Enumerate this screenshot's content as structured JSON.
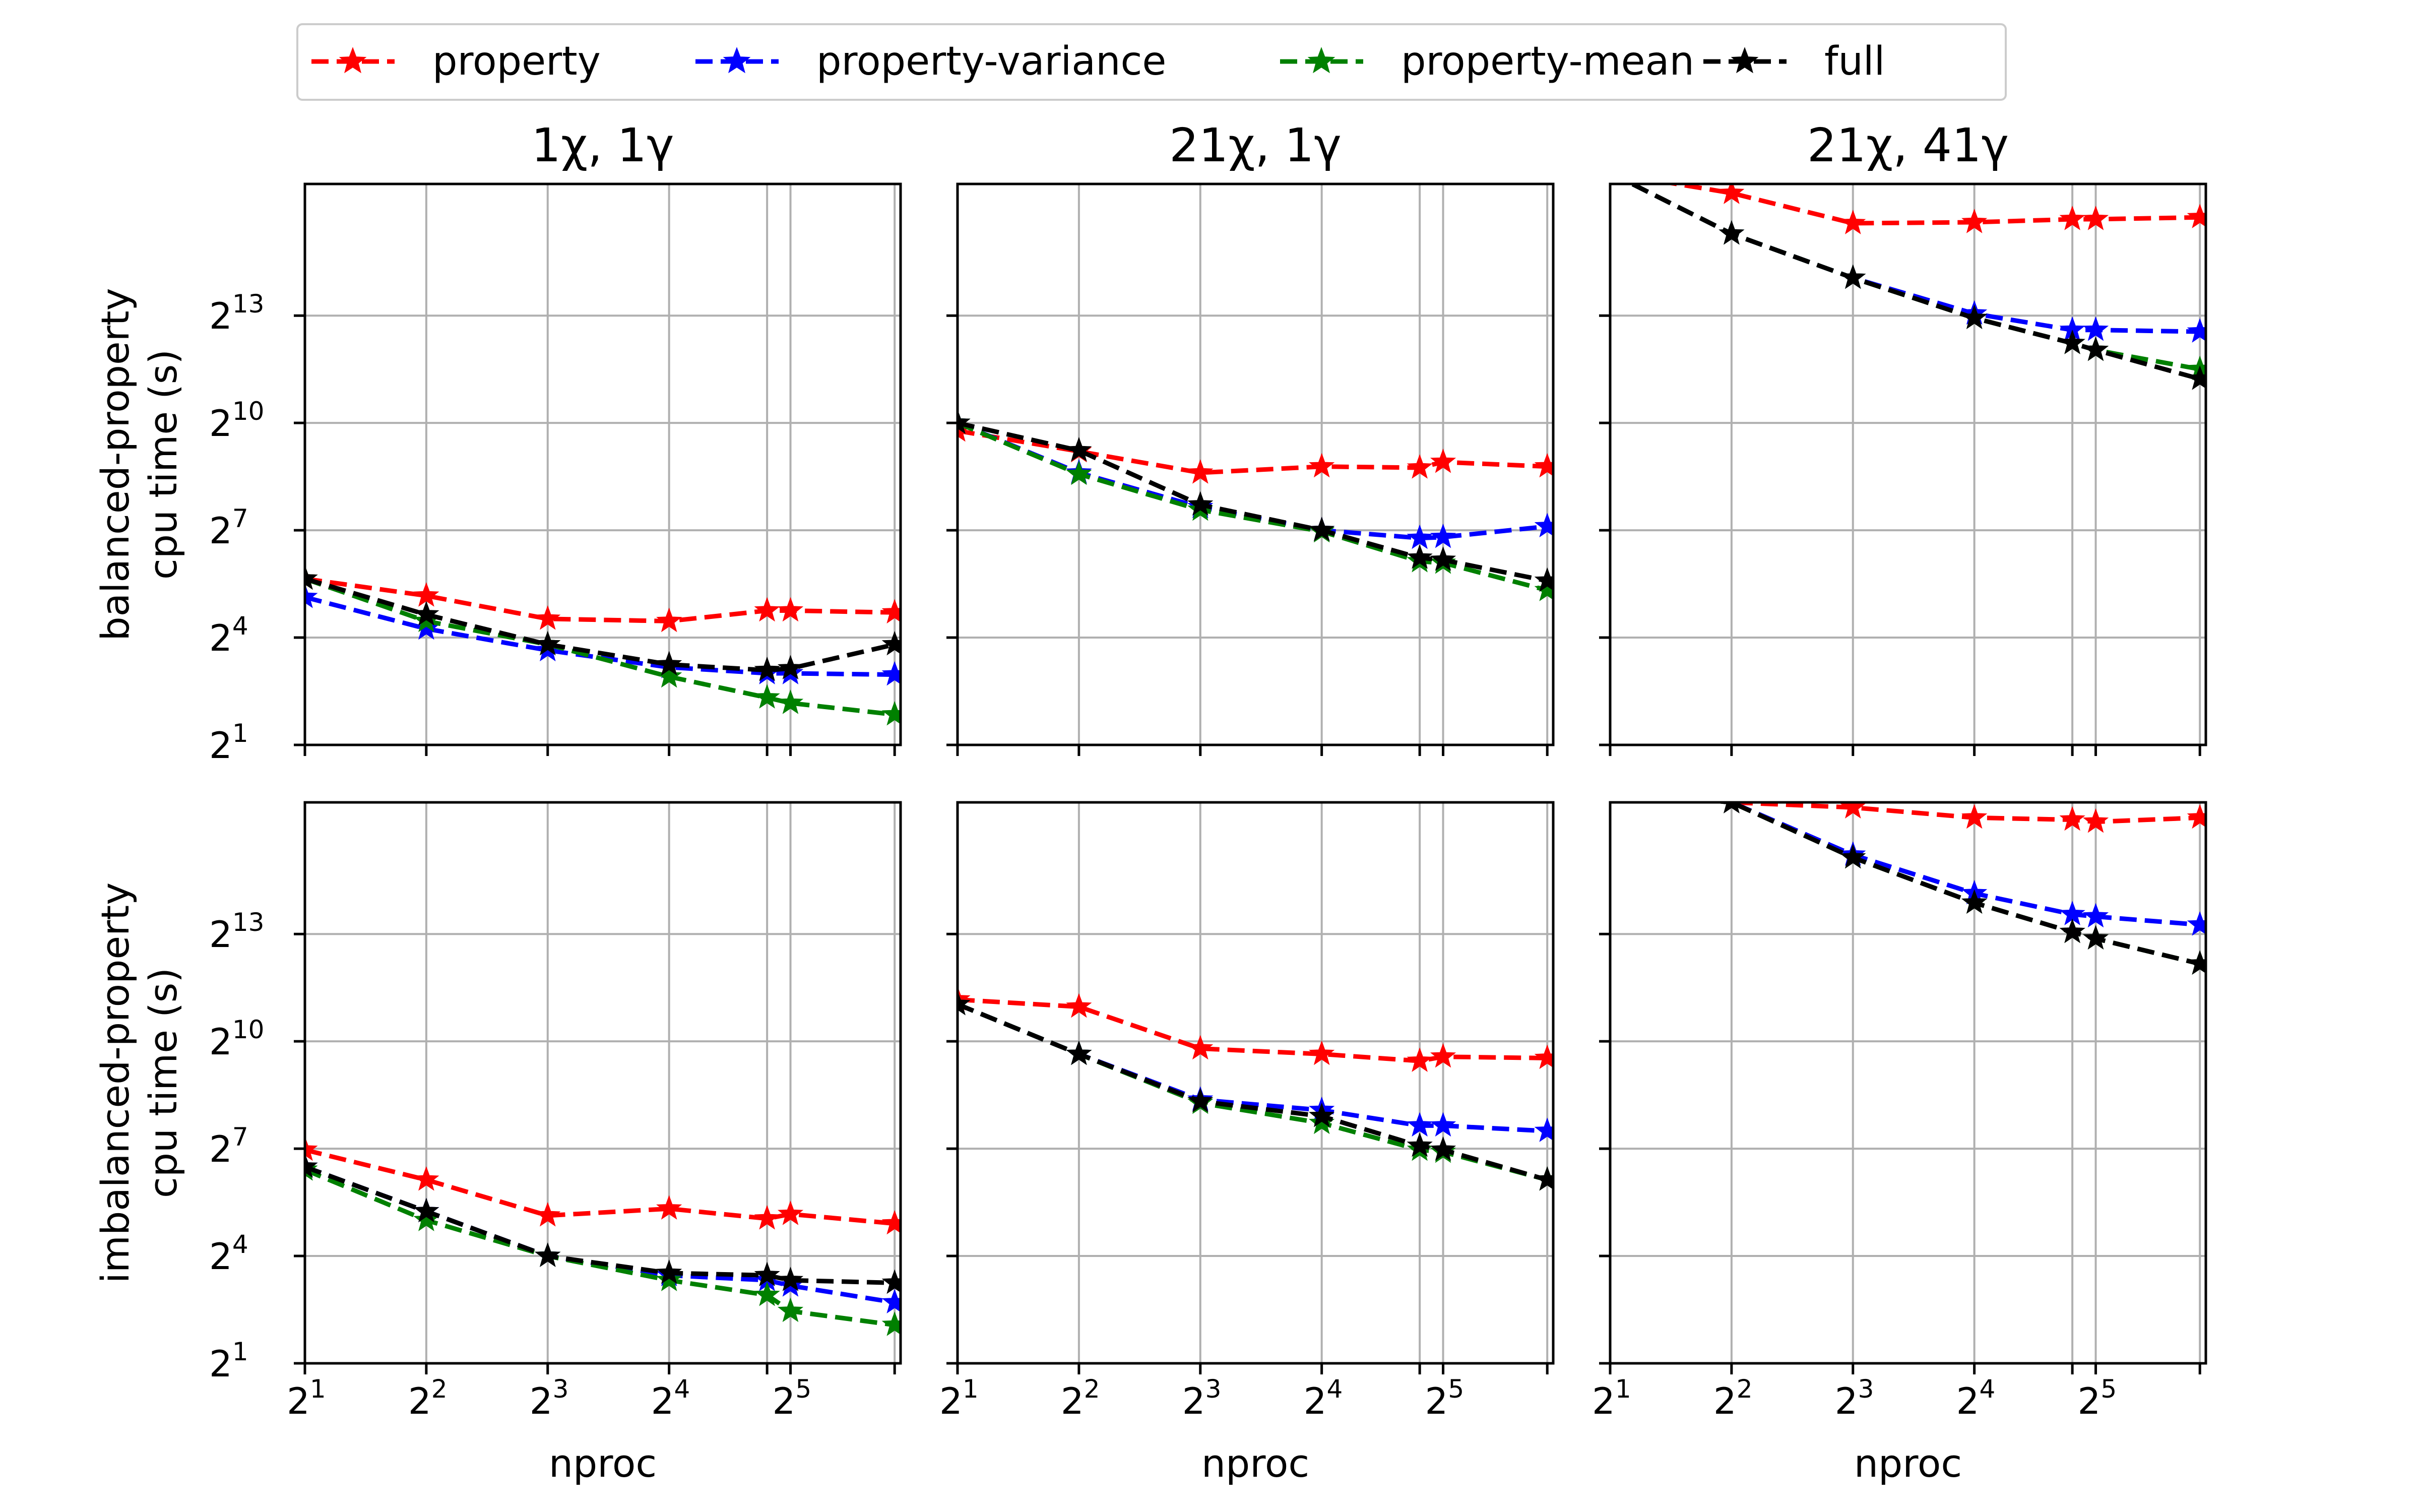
{
  "legend": {
    "entries": [
      {
        "label": "property",
        "color": "#ff0000"
      },
      {
        "label": "property-variance",
        "color": "#0000ff"
      },
      {
        "label": "property-mean",
        "color": "#008000"
      },
      {
        "label": "full",
        "color": "#000000"
      }
    ]
  },
  "chart_data": [
    {
      "type": "line",
      "title": "1χ, 1γ",
      "ylabel": [
        "balanced-property",
        "cpu time (s)"
      ],
      "xlabel": "",
      "xscale": "log2",
      "yscale": "log2",
      "xlim": [
        2,
        60
      ],
      "ylim": [
        2,
        105000
      ],
      "grid": true,
      "x": [
        2,
        4,
        8,
        16,
        28,
        32,
        58
      ],
      "series": [
        {
          "name": "property",
          "values": [
            50,
            36,
            23,
            22,
            27,
            27,
            26
          ]
        },
        {
          "name": "property-variance",
          "values": [
            35,
            19,
            12.5,
            9,
            8,
            8,
            7.8
          ]
        },
        {
          "name": "property-mean",
          "values": [
            50,
            22,
            14,
            7.5,
            5,
            4.5,
            3.6
          ]
        },
        {
          "name": "full",
          "values": [
            50,
            25,
            14,
            9.5,
            8.5,
            8.8,
            14
          ]
        }
      ]
    },
    {
      "type": "line",
      "title": "21χ, 1γ",
      "ylabel": "",
      "xlabel": "",
      "xscale": "log2",
      "yscale": "log2",
      "xlim": [
        2,
        60
      ],
      "ylim": [
        2,
        105000
      ],
      "grid": true,
      "x": [
        2,
        4,
        8,
        16,
        28,
        32,
        58
      ],
      "series": [
        {
          "name": "property",
          "values": [
            880,
            590,
            390,
            440,
            430,
            480,
            440
          ]
        },
        {
          "name": "property-variance",
          "values": [
            1024,
            390,
            200,
            128,
            110,
            112,
            138
          ]
        },
        {
          "name": "property-mean",
          "values": [
            1024,
            380,
            190,
            125,
            70,
            68,
            40
          ]
        },
        {
          "name": "full",
          "values": [
            1024,
            600,
            210,
            128,
            75,
            72,
            48
          ]
        }
      ]
    },
    {
      "type": "line",
      "title": "21χ, 41γ",
      "ylabel": "",
      "xlabel": "",
      "xscale": "log2",
      "yscale": "log2",
      "xlim": [
        2,
        60
      ],
      "ylim": [
        2,
        105000
      ],
      "grid": true,
      "x": [
        2,
        4,
        8,
        16,
        28,
        32,
        58
      ],
      "series": [
        {
          "name": "property",
          "values": [
            130000,
            88000,
            49000,
            50000,
            53000,
            53000,
            55000
          ]
        },
        {
          "name": "property-variance",
          "values": [
            130000,
            40000,
            17000,
            8500,
            6200,
            6200,
            6000
          ]
        },
        {
          "name": "property-mean",
          "values": [
            130000,
            40000,
            17000,
            7800,
            4800,
            4200,
            2900
          ]
        },
        {
          "name": "full",
          "values": [
            130000,
            40000,
            17000,
            7800,
            4800,
            4200,
            2400
          ]
        }
      ]
    },
    {
      "type": "line",
      "title": "",
      "ylabel": [
        "imbalanced-property",
        "cpu time (s)"
      ],
      "xlabel": "nproc",
      "xscale": "log2",
      "yscale": "log2",
      "xlim": [
        2,
        60
      ],
      "ylim": [
        2,
        105000
      ],
      "grid": true,
      "x": [
        2,
        4,
        8,
        16,
        28,
        32,
        58
      ],
      "series": [
        {
          "name": "property",
          "values": [
            125,
            70,
            35,
            40,
            33,
            36,
            30
          ]
        },
        {
          "name": "property-variance",
          "values": [
            90,
            38,
            16,
            11,
            10,
            9,
            6.5
          ]
        },
        {
          "name": "property-mean",
          "values": [
            85,
            32,
            16,
            10,
            7.5,
            5.5,
            4.2
          ]
        },
        {
          "name": "full",
          "values": [
            90,
            38,
            16,
            11.5,
            11,
            10,
            9.5
          ]
        }
      ]
    },
    {
      "type": "line",
      "title": "",
      "ylabel": "",
      "xlabel": "nproc",
      "xscale": "log2",
      "yscale": "log2",
      "xlim": [
        2,
        60
      ],
      "ylim": [
        2,
        105000
      ],
      "grid": true,
      "x": [
        2,
        4,
        8,
        16,
        28,
        32,
        58
      ],
      "series": [
        {
          "name": "property",
          "values": [
            2300,
            2000,
            890,
            800,
            700,
            760,
            740
          ]
        },
        {
          "name": "property-variance",
          "values": [
            2100,
            800,
            330,
            270,
            200,
            200,
            180
          ]
        },
        {
          "name": "property-mean",
          "values": [
            2100,
            800,
            310,
            210,
            125,
            120,
            70
          ]
        },
        {
          "name": "full",
          "values": [
            2100,
            800,
            320,
            240,
            135,
            125,
            70
          ]
        }
      ]
    },
    {
      "type": "line",
      "title": "",
      "ylabel": "",
      "xlabel": "nproc",
      "xscale": "log2",
      "yscale": "log2",
      "xlim": [
        2,
        60
      ],
      "ylim": [
        2,
        105000
      ],
      "grid": true,
      "x": [
        2,
        4,
        8,
        16,
        28,
        32,
        58
      ],
      "series": [
        {
          "name": "property",
          "values": [
            130000,
            105000,
            95000,
            78000,
            75000,
            72000,
            78000
          ]
        },
        {
          "name": "property-variance",
          "values": [
            130000,
            105000,
            38000,
            18000,
            12000,
            11500,
            9800
          ]
        },
        {
          "name": "property-mean",
          "values": [
            130000,
            105000,
            36000,
            15000,
            8500,
            7500,
            4600
          ]
        },
        {
          "name": "full",
          "values": [
            130000,
            105000,
            36000,
            15000,
            8500,
            7500,
            4600
          ]
        }
      ]
    }
  ]
}
